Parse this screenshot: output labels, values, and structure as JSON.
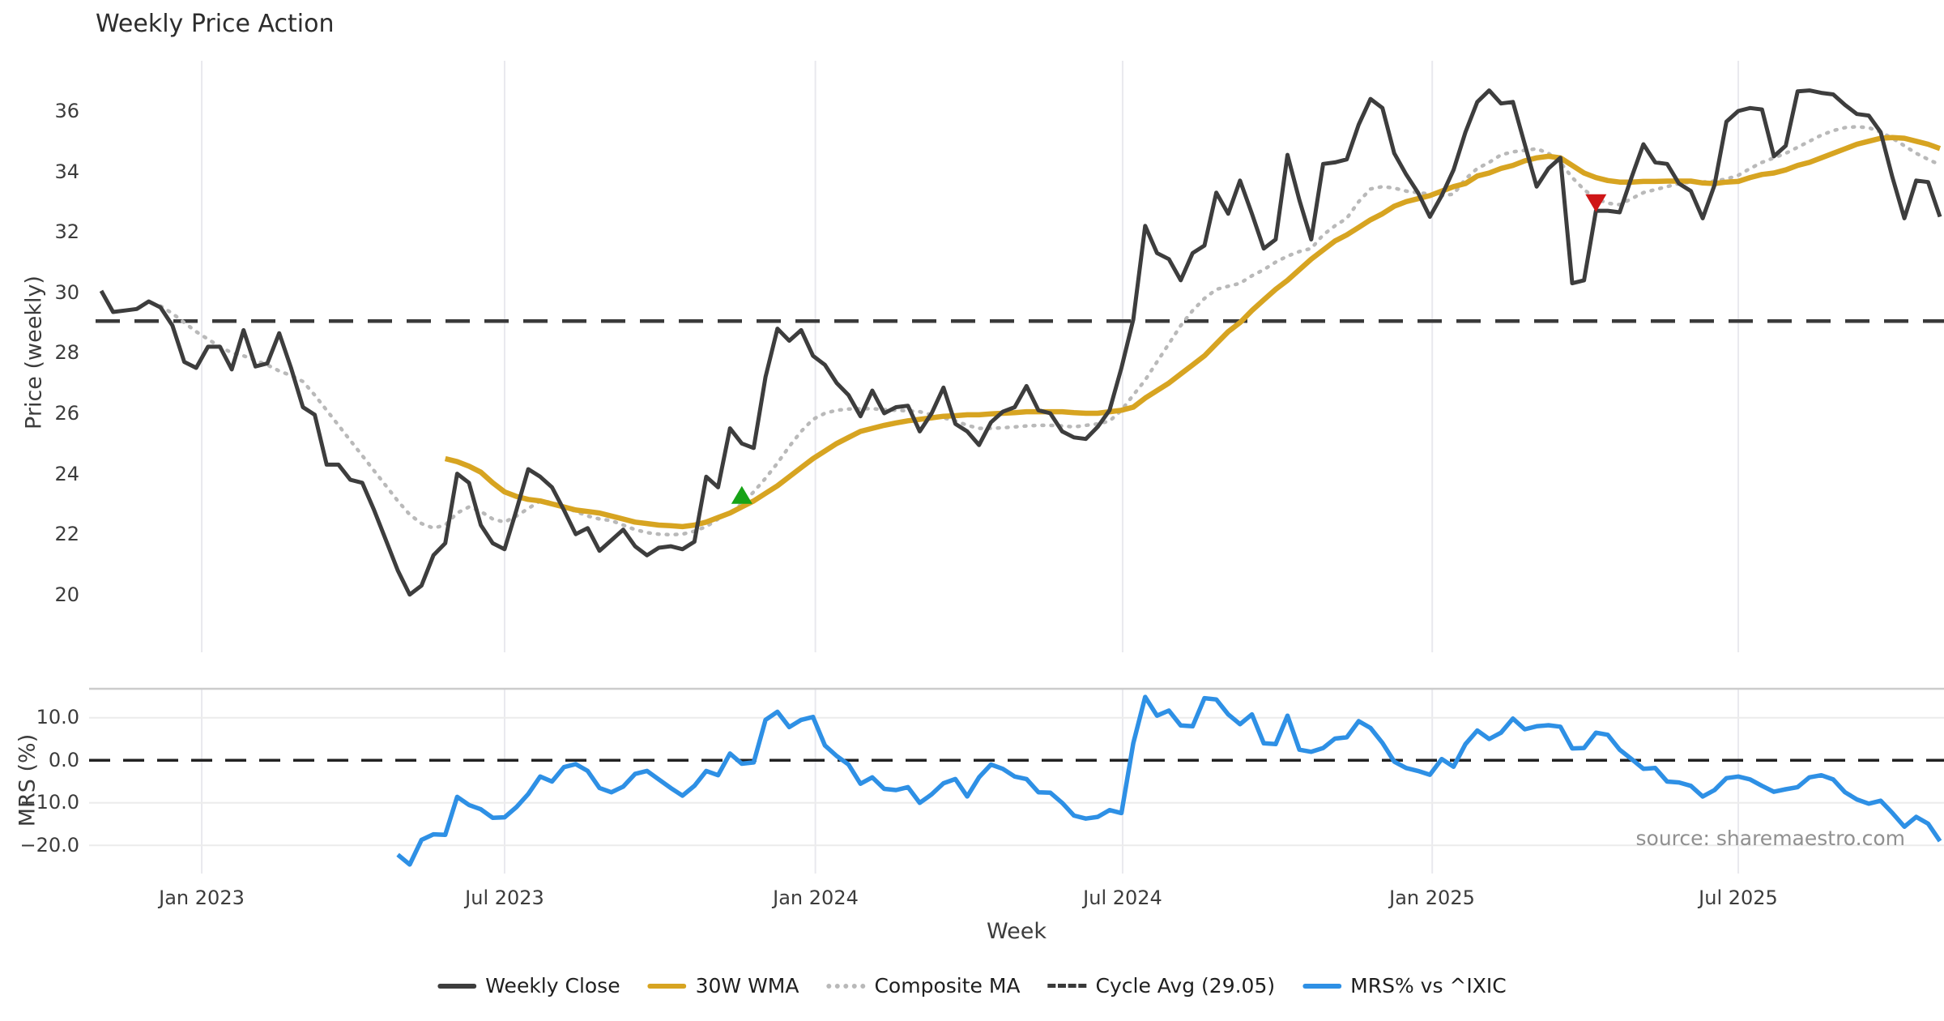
{
  "title": "Weekly Price Action",
  "source": "source: sharemaestro.com",
  "axes": {
    "price_ylabel": "Price (weekly)",
    "mrs_ylabel": "MRS (%)",
    "xlabel": "Week",
    "price_ticks": [
      {
        "label": "36",
        "value": 36
      },
      {
        "label": "34",
        "value": 34
      },
      {
        "label": "32",
        "value": 32
      },
      {
        "label": "30",
        "value": 30
      },
      {
        "label": "28",
        "value": 28
      },
      {
        "label": "26",
        "value": 26
      },
      {
        "label": "24",
        "value": 24
      },
      {
        "label": "22",
        "value": 22
      },
      {
        "label": "20",
        "value": 20
      }
    ],
    "mrs_ticks": [
      {
        "label": "10.0",
        "value": 10
      },
      {
        "label": "0.0",
        "value": 0
      },
      {
        "label": "−10.0",
        "value": -10
      },
      {
        "label": "−20.0",
        "value": -20
      }
    ],
    "x_ticks": [
      {
        "label": "Jan 2023",
        "week": 8.47
      },
      {
        "label": "Jul 2023",
        "week": 34.0
      },
      {
        "label": "Jan 2024",
        "week": 60.2
      },
      {
        "label": "Jul 2024",
        "week": 86.1
      },
      {
        "label": "Jan 2025",
        "week": 112.2
      },
      {
        "label": "Jul 2025",
        "week": 138.0
      }
    ]
  },
  "legend": {
    "items": [
      {
        "label": "Weekly Close",
        "swatch": "solid-dark"
      },
      {
        "label": "30W WMA",
        "swatch": "solid-gold"
      },
      {
        "label": "Composite MA",
        "swatch": "dotted-gray"
      },
      {
        "label": "Cycle Avg (29.05)",
        "swatch": "dashed-dark"
      },
      {
        "label": "MRS% vs ^IXIC",
        "swatch": "solid-blue"
      }
    ]
  },
  "colors": {
    "weekly_close": "#3d3d3d",
    "wma30": "#d7a421",
    "composite_ma": "#b9b9b9",
    "cycle_avg": "#3a3a3a",
    "mrs": "#2e90e5",
    "buy_marker": "#17a317",
    "sell_marker": "#cf1617",
    "grid": "#e9e9ee",
    "spine": "#cccccc"
  },
  "chart_data": {
    "type": "line",
    "x_unit": "week_index",
    "n_weeks": 156,
    "panels": {
      "price": {
        "ylim": [
          18.1,
          37.6
        ],
        "title_ticks": [
          20,
          22,
          24,
          26,
          28,
          30,
          32,
          34,
          36
        ]
      },
      "mrs": {
        "ylim": [
          -26.6,
          16.8
        ],
        "title_ticks": [
          -20,
          -10,
          0,
          10
        ]
      }
    },
    "cycle_avg": 29.05,
    "series": [
      {
        "name": "Weekly Close",
        "panel": "price",
        "start_week": 0,
        "values": [
          30.05,
          29.35,
          29.4,
          29.45,
          29.7,
          29.5,
          28.9,
          27.7,
          27.5,
          28.2,
          28.2,
          27.45,
          28.75,
          27.55,
          27.65,
          28.65,
          27.5,
          26.2,
          25.95,
          24.3,
          24.3,
          23.8,
          23.7,
          22.8,
          21.8,
          20.8,
          20.0,
          20.3,
          21.3,
          21.7,
          24.0,
          23.7,
          22.3,
          21.7,
          21.5,
          22.8,
          24.15,
          23.9,
          23.55,
          22.8,
          22.0,
          22.2,
          21.45,
          21.8,
          22.15,
          21.6,
          21.3,
          21.55,
          21.6,
          21.5,
          21.75,
          23.9,
          23.55,
          25.5,
          25.0,
          24.85,
          27.2,
          28.8,
          28.4,
          28.75,
          27.9,
          27.6,
          27.0,
          26.6,
          25.9,
          26.75,
          26.0,
          26.2,
          26.25,
          25.4,
          26.0,
          26.85,
          25.65,
          25.4,
          24.95,
          25.7,
          26.05,
          26.2,
          26.9,
          26.1,
          26.0,
          25.4,
          25.2,
          25.15,
          25.55,
          26.1,
          27.5,
          29.1,
          32.2,
          31.3,
          31.1,
          30.4,
          31.3,
          31.55,
          33.3,
          32.6,
          33.7,
          32.6,
          31.45,
          31.75,
          34.55,
          33.05,
          31.75,
          34.25,
          34.3,
          34.4,
          35.55,
          36.4,
          36.1,
          34.6,
          33.9,
          33.3,
          32.5,
          33.2,
          34.05,
          35.3,
          36.3,
          36.68,
          36.25,
          36.3,
          34.9,
          33.5,
          34.1,
          34.45,
          30.3,
          30.4,
          32.7,
          32.7,
          32.65,
          33.8,
          34.9,
          34.3,
          34.25,
          33.6,
          33.35,
          32.45,
          33.55,
          35.65,
          36.0,
          36.1,
          36.05,
          34.5,
          34.85,
          36.65,
          36.68,
          36.6,
          36.55,
          36.2,
          35.9,
          35.85,
          35.3,
          33.8,
          32.45,
          33.7,
          33.65,
          32.5
        ]
      },
      {
        "name": "30W WMA",
        "panel": "price",
        "start_week": 29,
        "values": [
          24.5,
          24.4,
          24.25,
          24.05,
          23.7,
          23.4,
          23.25,
          23.15,
          23.1,
          23.0,
          22.9,
          22.8,
          22.75,
          22.7,
          22.6,
          22.5,
          22.4,
          22.35,
          22.3,
          22.28,
          22.25,
          22.3,
          22.4,
          22.55,
          22.7,
          22.9,
          23.1,
          23.35,
          23.6,
          23.9,
          24.2,
          24.5,
          24.75,
          25.0,
          25.2,
          25.4,
          25.5,
          25.6,
          25.68,
          25.75,
          25.8,
          25.85,
          25.9,
          25.92,
          25.95,
          25.95,
          25.98,
          26.0,
          26.02,
          26.05,
          26.05,
          26.05,
          26.05,
          26.02,
          26.0,
          26.0,
          26.05,
          26.1,
          26.2,
          26.5,
          26.75,
          27.0,
          27.3,
          27.6,
          27.9,
          28.3,
          28.7,
          29.0,
          29.4,
          29.75,
          30.1,
          30.4,
          30.75,
          31.1,
          31.4,
          31.7,
          31.9,
          32.15,
          32.4,
          32.6,
          32.85,
          33.0,
          33.1,
          33.2,
          33.35,
          33.5,
          33.6,
          33.85,
          33.95,
          34.1,
          34.2,
          34.35,
          34.45,
          34.5,
          34.45,
          34.2,
          33.95,
          33.8,
          33.7,
          33.65,
          33.65,
          33.67,
          33.67,
          33.68,
          33.68,
          33.68,
          33.62,
          33.6,
          33.65,
          33.67,
          33.8,
          33.9,
          33.95,
          34.05,
          34.2,
          34.3,
          34.45,
          34.6,
          34.75,
          34.9,
          35.0,
          35.1,
          35.12,
          35.1,
          35.0,
          34.9,
          34.76
        ]
      },
      {
        "name": "Composite MA",
        "panel": "price",
        "start_week": 5,
        "values": [
          29.55,
          29.3,
          29.0,
          28.7,
          28.45,
          28.2,
          28.0,
          27.9,
          27.75,
          27.6,
          27.4,
          27.25,
          27.05,
          26.6,
          26.1,
          25.6,
          25.1,
          24.6,
          24.1,
          23.6,
          23.1,
          22.65,
          22.35,
          22.2,
          22.3,
          22.7,
          22.9,
          22.75,
          22.5,
          22.4,
          22.6,
          22.85,
          23.1,
          23.05,
          22.9,
          22.75,
          22.6,
          22.5,
          22.45,
          22.3,
          22.15,
          22.05,
          22.0,
          21.98,
          22.0,
          22.1,
          22.25,
          22.5,
          22.7,
          23.0,
          23.4,
          23.85,
          24.35,
          24.9,
          25.4,
          25.8,
          26.0,
          26.1,
          26.14,
          26.15,
          26.15,
          26.12,
          26.1,
          26.08,
          26.05,
          25.95,
          25.85,
          25.75,
          25.6,
          25.5,
          25.5,
          25.52,
          25.55,
          25.58,
          25.6,
          25.6,
          25.58,
          25.55,
          25.6,
          25.65,
          25.74,
          26.1,
          26.6,
          27.1,
          27.7,
          28.3,
          28.9,
          29.4,
          29.8,
          30.1,
          30.2,
          30.3,
          30.55,
          30.75,
          31.0,
          31.2,
          31.35,
          31.45,
          31.9,
          32.2,
          32.45,
          33.0,
          33.42,
          33.5,
          33.45,
          33.35,
          33.3,
          33.25,
          33.2,
          33.25,
          33.75,
          34.1,
          34.3,
          34.55,
          34.65,
          34.7,
          34.75,
          34.6,
          34.3,
          33.8,
          33.4,
          33.1,
          32.95,
          32.9,
          33.1,
          33.3,
          33.4,
          33.5,
          33.6,
          33.65,
          33.65,
          33.68,
          33.75,
          33.87,
          34.1,
          34.3,
          34.45,
          34.6,
          34.8,
          35.0,
          35.2,
          35.35,
          35.45,
          35.48,
          35.45,
          35.3,
          35.1,
          34.85,
          34.6,
          34.4,
          34.22
        ]
      },
      {
        "name": "MRS% vs ^IXIC",
        "panel": "mrs",
        "start_week": 25,
        "values": [
          -22.2,
          -24.5,
          -18.7,
          -17.4,
          -17.5,
          -8.6,
          -10.5,
          -11.5,
          -13.5,
          -13.4,
          -11.0,
          -7.9,
          -3.8,
          -5.0,
          -1.6,
          -0.9,
          -2.5,
          -6.5,
          -7.5,
          -6.2,
          -3.2,
          -2.5,
          -4.5,
          -6.5,
          -8.3,
          -6.0,
          -2.5,
          -3.5,
          1.6,
          -0.8,
          -0.5,
          9.5,
          11.4,
          7.8,
          9.5,
          10.2,
          3.5,
          1.0,
          -1.0,
          -5.5,
          -4.0,
          -6.7,
          -7.0,
          -6.3,
          -10.0,
          -8.0,
          -5.4,
          -4.4,
          -8.5,
          -4.0,
          -1.0,
          -2.0,
          -3.8,
          -4.4,
          -7.5,
          -7.6,
          -10.0,
          -13.0,
          -13.7,
          -13.3,
          -11.7,
          -12.4,
          4.0,
          14.9,
          10.5,
          11.7,
          8.2,
          8.0,
          14.6,
          14.3,
          10.8,
          8.5,
          10.8,
          4.0,
          3.8,
          10.5,
          2.5,
          2.0,
          2.9,
          5.1,
          5.4,
          9.2,
          7.6,
          4.1,
          -0.3,
          -1.8,
          -2.5,
          -3.4,
          0.3,
          -1.5,
          3.8,
          7.0,
          5.0,
          6.5,
          9.8,
          7.3,
          8.0,
          8.25,
          7.9,
          2.8,
          2.9,
          6.5,
          6.0,
          2.5,
          0.3,
          -2.0,
          -1.8,
          -5.0,
          -5.2,
          -6.0,
          -8.5,
          -7.0,
          -4.2,
          -3.8,
          -4.5,
          -6.0,
          -7.4,
          -6.8,
          -6.3,
          -4.0,
          -3.5,
          -4.5,
          -7.5,
          -9.2,
          -10.2,
          -9.5,
          -12.4,
          -15.6,
          -13.3,
          -14.9,
          -19.0
        ]
      }
    ],
    "markers": [
      {
        "name": "buy-signal",
        "shape": "triangle-up",
        "week": 54,
        "value": 23.3,
        "color": "#17a317"
      },
      {
        "name": "sell-signal",
        "shape": "triangle-down",
        "week": 126,
        "value": 32.95,
        "color": "#cf1617"
      }
    ]
  }
}
